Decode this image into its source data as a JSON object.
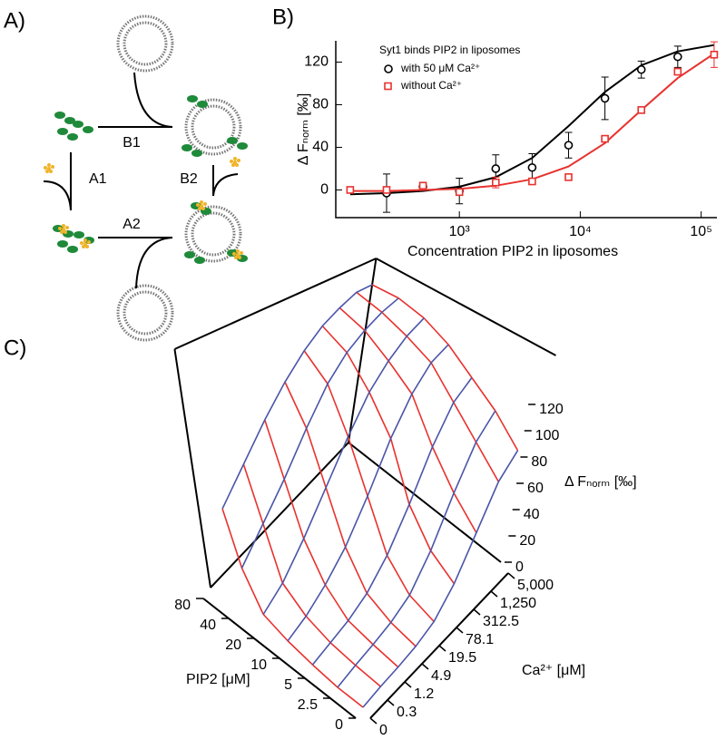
{
  "panel_labels": [
    "A)",
    "B)",
    "C)"
  ],
  "diagram": {
    "steps": [
      "B1",
      "A1",
      "B2",
      "A2"
    ]
  },
  "chart_data": [
    {
      "type": "scatter",
      "title": "Syt1 binds PIP2 in liposomes",
      "x_label": "Concentration PIP2 in liposomes",
      "y_label": "Δ Fₙₒᵣₘ [‰]",
      "log_x": true,
      "x": [
        125,
        250,
        500,
        1000,
        2000,
        4000,
        8000,
        16000,
        32000,
        64000,
        128000
      ],
      "xlim": [
        95,
        135000
      ],
      "xticks": [
        {
          "value": 1000,
          "label": "10³"
        },
        {
          "value": 10000,
          "label": "10⁴"
        },
        {
          "value": 100000,
          "label": "10⁵"
        }
      ],
      "ylim": [
        -26,
        140
      ],
      "yticks": [
        0,
        40,
        80,
        120
      ],
      "series": [
        {
          "name": "with 50 μM Ca²⁺",
          "color": "#000000",
          "marker": "circle",
          "values": [
            null,
            -3,
            3,
            -1,
            20,
            21,
            42,
            86,
            113,
            125,
            null
          ],
          "errors": [
            null,
            18,
            3,
            12,
            13,
            13,
            12,
            20,
            8,
            10,
            null
          ],
          "fit_values": [
            -4,
            -3,
            -1,
            3,
            12,
            30,
            60,
            92,
            117,
            130,
            136
          ]
        },
        {
          "name": "without Ca²⁺",
          "color": "#e8322e",
          "marker": "square",
          "values": [
            0,
            0,
            4,
            -2,
            7,
            8,
            12,
            48,
            75,
            111,
            127
          ],
          "errors": [
            1,
            1,
            3,
            2,
            5,
            2,
            2,
            2,
            2,
            3,
            12
          ],
          "fit_values": [
            -1,
            -1,
            0,
            1,
            4,
            10,
            22,
            44,
            75,
            105,
            128
          ]
        }
      ]
    },
    {
      "type": "surface",
      "x_label": "PIP2 [μM]",
      "y_label": "Ca²⁺ [μM]",
      "z_label": "Δ Fₙₒᵣₘ [‰]",
      "x": [
        0,
        2.5,
        5,
        10,
        20,
        40,
        80
      ],
      "y": [
        0,
        0.3,
        1.2,
        4.9,
        19.5,
        78.1,
        312.5,
        {
          "value": 1250,
          "label": "1,250"
        },
        {
          "value": 5000,
          "label": "5,000"
        }
      ],
      "zlim": [
        0,
        140
      ],
      "zticks": [
        0,
        20,
        40,
        60,
        80,
        100,
        120
      ],
      "row_color": "#4a55a8",
      "column_color": "#e8322e",
      "z": [
        [
          0,
          2,
          3,
          5,
          10,
          25,
          50,
          75,
          85
        ],
        [
          0,
          3,
          5,
          8,
          15,
          35,
          65,
          90,
          100
        ],
        [
          2,
          5,
          8,
          15,
          30,
          55,
          85,
          105,
          110
        ],
        [
          5,
          10,
          20,
          35,
          60,
          90,
          110,
          120,
          120
        ],
        [
          10,
          20,
          40,
          65,
          90,
          110,
          120,
          125,
          125
        ],
        [
          30,
          50,
          70,
          95,
          115,
          125,
          128,
          128,
          125
        ],
        [
          60,
          80,
          100,
          115,
          125,
          130,
          130,
          128,
          120
        ]
      ]
    }
  ]
}
